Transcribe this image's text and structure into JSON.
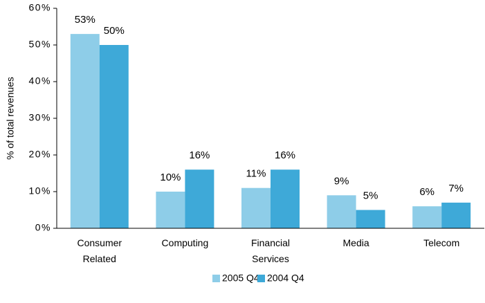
{
  "chart_data": {
    "type": "bar",
    "ylabel": "% of total revenues",
    "categories": [
      "Consumer Related",
      "Computing",
      "Financial Services",
      "Media",
      "Telecom"
    ],
    "series": [
      {
        "name": "2005 Q4",
        "color": "#8ecde8",
        "values": [
          53,
          10,
          11,
          9,
          6
        ],
        "value_labels": [
          "53%",
          "10%",
          "11%",
          "9%",
          "6%"
        ]
      },
      {
        "name": "2004 Q4",
        "color": "#3ea9d8",
        "values": [
          50,
          16,
          16,
          5,
          7
        ],
        "value_labels": [
          "50%",
          "16%",
          "16%",
          "5%",
          "7%"
        ]
      }
    ],
    "ylim": [
      0,
      60
    ],
    "yticks": [
      {
        "value": 0,
        "label": "0%"
      },
      {
        "value": 10,
        "label": "10%"
      },
      {
        "value": 20,
        "label": "20%"
      },
      {
        "value": 30,
        "label": "30%"
      },
      {
        "value": 40,
        "label": "40%"
      },
      {
        "value": 50,
        "label": "50%"
      },
      {
        "value": 60,
        "label": "60%"
      }
    ],
    "legend": "bottom"
  }
}
